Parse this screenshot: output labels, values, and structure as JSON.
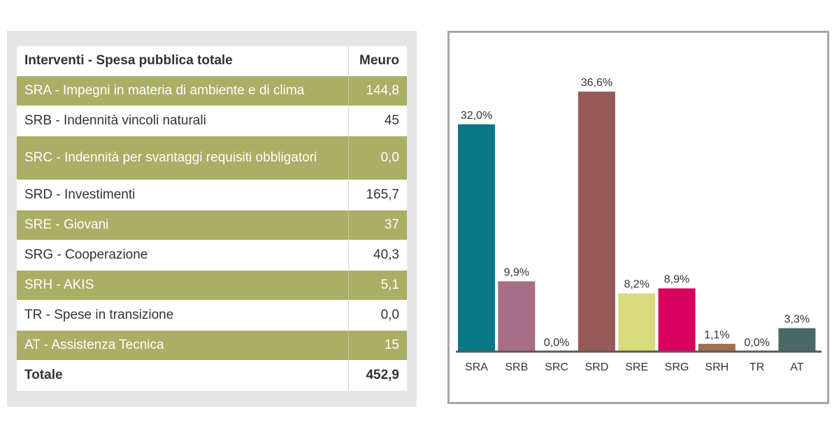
{
  "table": {
    "header": {
      "label": "Interventi - Spesa pubblica totale",
      "unit": "Meuro"
    },
    "rows": [
      {
        "label": "SRA - Impegni in materia di ambiente e di clima",
        "value": "144,8"
      },
      {
        "label": "SRB - Indennità vincoli naturali",
        "value": "45"
      },
      {
        "label": "SRC - Indennità per svantaggi requisiti obbligatori",
        "value": "0,0"
      },
      {
        "label": "SRD - Investimenti",
        "value": "165,7"
      },
      {
        "label": "SRE - Giovani",
        "value": "37"
      },
      {
        "label": "SRG - Cooperazione",
        "value": "40,3"
      },
      {
        "label": "SRH - AKIS",
        "value": "5,1"
      },
      {
        "label": "TR - Spese in transizione",
        "value": "0,0"
      },
      {
        "label": "AT - Assistenza Tecnica",
        "value": "15"
      }
    ],
    "total": {
      "label": "Totale",
      "value": "452,9"
    },
    "row_colors": {
      "green": "#abae65",
      "white": "#ffffff"
    }
  },
  "chart_data": {
    "type": "bar",
    "categories": [
      "SRA",
      "SRB",
      "SRC",
      "SRD",
      "SRE",
      "SRG",
      "SRH",
      "TR",
      "AT"
    ],
    "values": [
      32.0,
      9.9,
      0.0,
      36.6,
      8.2,
      8.9,
      1.1,
      0.0,
      3.3
    ],
    "data_labels": [
      "32,0%",
      "9,9%",
      "0,0%",
      "36,6%",
      "8,2%",
      "8,9%",
      "1,1%",
      "0,0%",
      "3,3%"
    ],
    "colors": [
      "#097785",
      "#a86e87",
      "#9a9a9a",
      "#955a58",
      "#d9dc7c",
      "#d8005f",
      "#9c7150",
      "#9a9a9a",
      "#486a67"
    ],
    "title": "",
    "xlabel": "",
    "ylabel": "",
    "ylim": [
      0,
      37
    ],
    "grid": false,
    "legend": "none"
  }
}
